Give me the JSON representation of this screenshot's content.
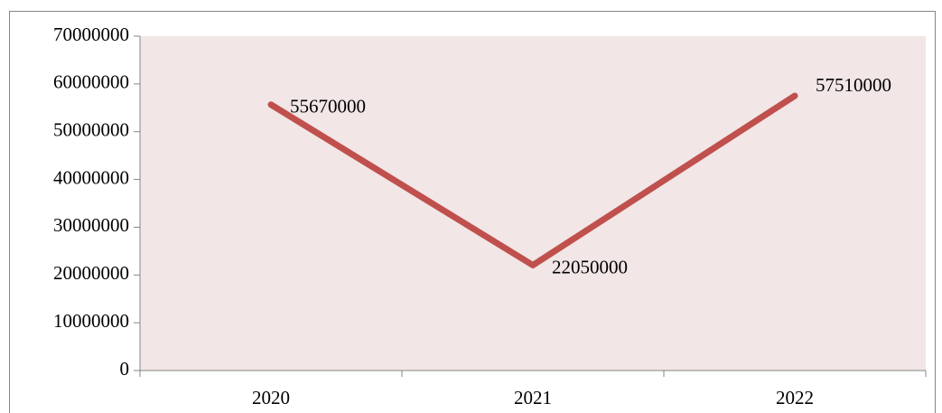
{
  "chart_data": {
    "type": "line",
    "categories": [
      "2020",
      "2021",
      "2022"
    ],
    "values": [
      55670000,
      22050000,
      57510000
    ],
    "color": "#c0504d",
    "plot_background": "#f2e6e6",
    "ylim": [
      0,
      70000000
    ],
    "yticks": [
      0,
      10000000,
      20000000,
      30000000,
      40000000,
      50000000,
      60000000,
      70000000
    ],
    "grid": false,
    "data_labels": true
  }
}
